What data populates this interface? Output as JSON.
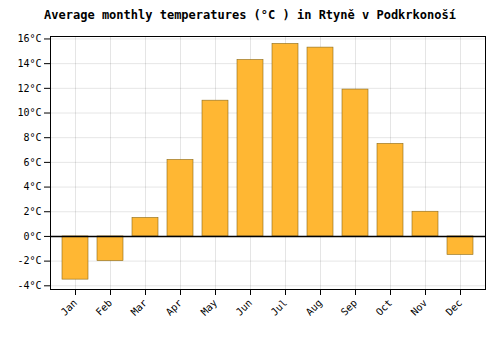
{
  "chart_data": {
    "type": "bar",
    "title": "Average monthly temperatures (°C ) in Rtyně v Podkrkonoší",
    "categories": [
      "Jan",
      "Feb",
      "Mar",
      "Apr",
      "May",
      "Jun",
      "Jul",
      "Aug",
      "Sep",
      "Oct",
      "Nov",
      "Dec"
    ],
    "values": [
      -3.5,
      -2.0,
      1.5,
      6.2,
      11.0,
      14.3,
      15.6,
      15.3,
      11.9,
      7.5,
      2.0,
      -1.5
    ],
    "color": "#FFB733",
    "ylim": [
      -4.3,
      16.2
    ],
    "yticks": [
      {
        "value": -4,
        "label": "-4°C"
      },
      {
        "value": -2,
        "label": "-2°C"
      },
      {
        "value": 0,
        "label": "0°C"
      },
      {
        "value": 2,
        "label": "2°C"
      },
      {
        "value": 4,
        "label": "4°C"
      },
      {
        "value": 6,
        "label": "6°C"
      },
      {
        "value": 8,
        "label": "8°C"
      },
      {
        "value": 10,
        "label": "10°C"
      },
      {
        "value": 12,
        "label": "12°C"
      },
      {
        "value": 14,
        "label": "14°C"
      },
      {
        "value": 16,
        "label": "16°C"
      }
    ],
    "grid": true
  }
}
